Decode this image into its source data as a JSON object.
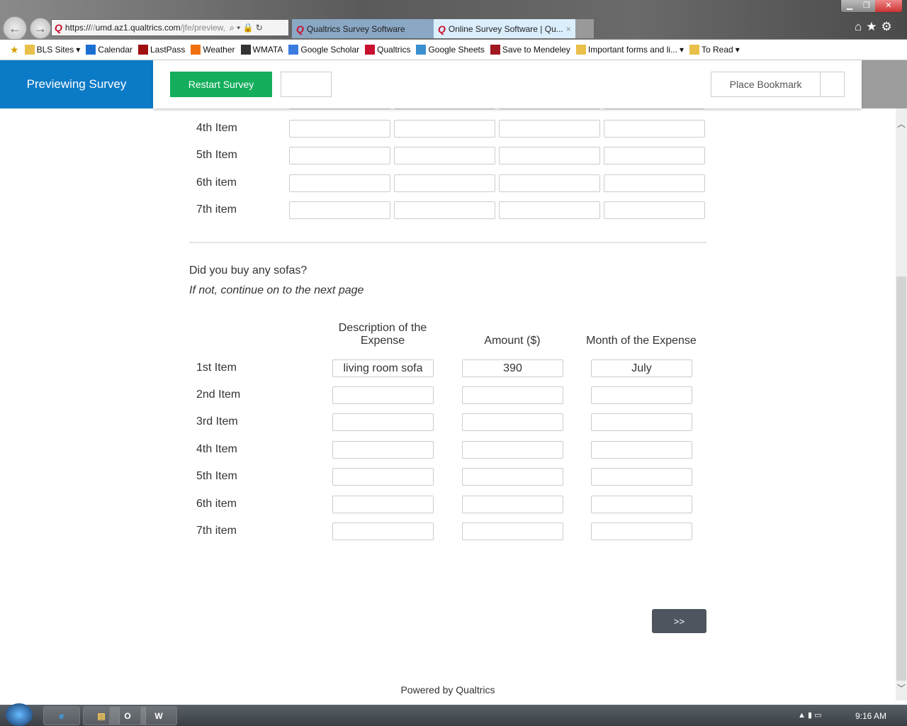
{
  "browser": {
    "url_prefix": "https://",
    "url_domain": "umd.az1.qualtrics.com",
    "url_path": "/jfe/preview,",
    "tabs": [
      {
        "label": "Qualtrics Survey Software",
        "active": false
      },
      {
        "label": "Online Survey Software | Qu...",
        "active": true
      }
    ],
    "close_tab": "×",
    "bookmarks": [
      {
        "label": "BLS Sites",
        "icon": "folder-icon",
        "dropdown": true
      },
      {
        "label": "Calendar",
        "icon": "calendar-icon"
      },
      {
        "label": "LastPass",
        "icon": "lastpass-icon"
      },
      {
        "label": "Weather",
        "icon": "sun-icon"
      },
      {
        "label": "WMATA",
        "icon": "wmata-icon"
      },
      {
        "label": "Google Scholar",
        "icon": "scholar-icon"
      },
      {
        "label": "Qualtrics",
        "icon": "qualtrics-icon"
      },
      {
        "label": "Google Sheets",
        "icon": "ie-page-icon"
      },
      {
        "label": "Save to Mendeley",
        "icon": "mendeley-icon"
      },
      {
        "label": "Important forms and li...",
        "icon": "folder-icon",
        "dropdown": true
      },
      {
        "label": "To Read",
        "icon": "folder-icon",
        "dropdown": true
      }
    ]
  },
  "header": {
    "preview_label": "Previewing Survey",
    "restart_label": "Restart Survey",
    "bookmark_label": "Place Bookmark",
    "accent": "#0b7ac7",
    "restart_color": "#14ae5c"
  },
  "table1": {
    "rows": [
      "4th Item",
      "5th Item",
      "6th item",
      "7th item"
    ]
  },
  "question": {
    "text": "Did you buy any sofas?",
    "subtext": "If not, continue on to the next page"
  },
  "table2": {
    "headers": [
      "Description of the Expense",
      "Amount ($)",
      "Month of the Expense"
    ],
    "rows": [
      {
        "label": "1st Item",
        "values": [
          "living room sofa",
          "390",
          "July"
        ]
      },
      {
        "label": "2nd Item",
        "values": [
          "",
          "",
          ""
        ]
      },
      {
        "label": "3rd Item",
        "values": [
          "",
          "",
          ""
        ]
      },
      {
        "label": "4th Item",
        "values": [
          "",
          "",
          ""
        ]
      },
      {
        "label": "5th Item",
        "values": [
          "",
          "",
          ""
        ]
      },
      {
        "label": "6th item",
        "values": [
          "",
          "",
          ""
        ]
      },
      {
        "label": "7th item",
        "values": [
          "",
          "",
          ""
        ]
      }
    ]
  },
  "next_label": ">>",
  "footer": "Powered by Qualtrics",
  "taskbar": {
    "clock": "9:16 AM"
  }
}
